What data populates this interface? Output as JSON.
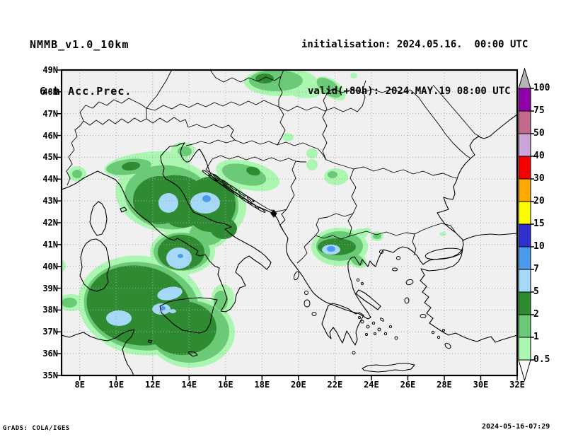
{
  "header": {
    "model": "NMMB_v1.0_10km",
    "product": "6-h Acc.Prec.",
    "init_line": "initialisation: 2024.05.16.  00:00 UTC",
    "valid_line": "valid(+80h): 2024.MAY.19 08:00 UTC"
  },
  "map": {
    "lat_ticks": [
      "49N",
      "48N",
      "47N",
      "46N",
      "45N",
      "44N",
      "43N",
      "42N",
      "41N",
      "40N",
      "39N",
      "38N",
      "37N",
      "36N",
      "35N"
    ],
    "lon_ticks": [
      "8E",
      "10E",
      "12E",
      "14E",
      "16E",
      "18E",
      "20E",
      "22E",
      "24E",
      "26E",
      "28E",
      "30E",
      "32E"
    ]
  },
  "colorbar": {
    "labels": [
      "100",
      "75",
      "50",
      "40",
      "30",
      "20",
      "15",
      "10",
      "7",
      "5",
      "2",
      "1",
      "0.5"
    ],
    "colors": [
      "#9000a8",
      "#c4688c",
      "#c9a5da",
      "#f80000",
      "#ffa800",
      "#fdfd00",
      "#3030cc",
      "#4a9af0",
      "#a6d8f8",
      "#2e8b31",
      "#6aca75",
      "#abf7b1"
    ],
    "over_arrow_color": "#b4b4b4",
    "under_arrow_color": "#f8f8f8"
  },
  "legend_values_mm": [
    0.5,
    1,
    2,
    5,
    7,
    10,
    15,
    20,
    30,
    40,
    50,
    75,
    100
  ],
  "footer": {
    "left": "GrADS: COLA/IGES",
    "right": "2024-05-16-07:29"
  },
  "map_colors": {
    "background": "#f0f0f0",
    "gridline": "#a8a8a8",
    "coastline": "#000000"
  }
}
